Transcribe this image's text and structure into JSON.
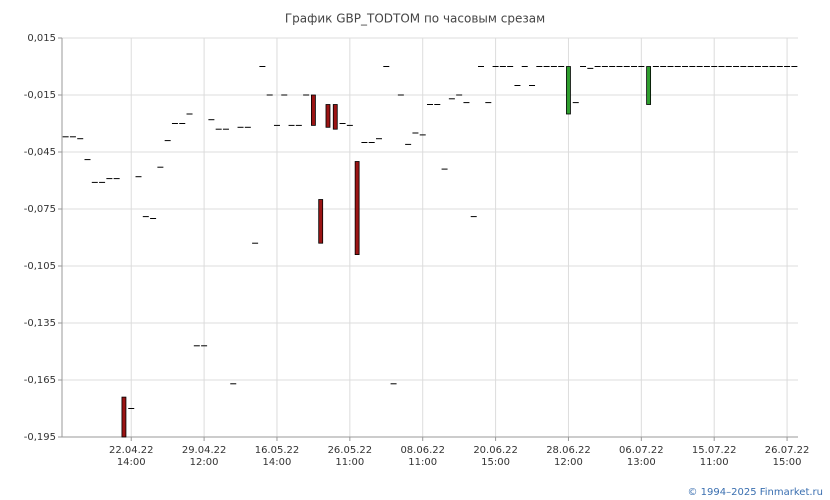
{
  "chart_data": {
    "type": "candlestick",
    "title": "График GBP_TODTOM по часовым срезам",
    "ylim": [
      -0.195,
      0.015
    ],
    "yticks": [
      {
        "value": 0.015,
        "label": "0,015"
      },
      {
        "value": -0.015,
        "label": "-0,015"
      },
      {
        "value": -0.045,
        "label": "-0,045"
      },
      {
        "value": -0.075,
        "label": "-0,075"
      },
      {
        "value": -0.105,
        "label": "-0,105"
      },
      {
        "value": -0.135,
        "label": "-0,135"
      },
      {
        "value": -0.165,
        "label": "-0,165"
      },
      {
        "value": -0.195,
        "label": "-0,195"
      }
    ],
    "grid": true,
    "up_color": "#2e9e2e",
    "down_color": "#9b1414",
    "categories": [
      null,
      null,
      null,
      null,
      null,
      null,
      null,
      null,
      null,
      [
        "22.04.22",
        "14:00"
      ],
      null,
      null,
      null,
      null,
      null,
      null,
      null,
      null,
      null,
      [
        "29.04.22",
        "12:00"
      ],
      null,
      null,
      null,
      null,
      null,
      null,
      null,
      null,
      null,
      [
        "16.05.22",
        "14:00"
      ],
      null,
      null,
      null,
      null,
      null,
      null,
      null,
      null,
      null,
      [
        "26.05.22",
        "11:00"
      ],
      null,
      null,
      null,
      null,
      null,
      null,
      null,
      null,
      null,
      [
        "08.06.22",
        "11:00"
      ],
      null,
      null,
      null,
      null,
      null,
      null,
      null,
      null,
      null,
      [
        "20.06.22",
        "15:00"
      ],
      null,
      null,
      null,
      null,
      null,
      null,
      null,
      null,
      null,
      [
        "28.06.22",
        "12:00"
      ],
      null,
      null,
      null,
      null,
      null,
      null,
      null,
      null,
      null,
      [
        "06.07.22",
        "13:00"
      ],
      null,
      null,
      null,
      null,
      null,
      null,
      null,
      null,
      null,
      [
        "15.07.22",
        "11:00"
      ],
      null,
      null,
      null,
      null,
      null,
      null,
      null,
      null,
      null,
      [
        "26.07.22",
        "15:00"
      ],
      null
    ],
    "open": [
      -0.037,
      -0.037,
      -0.038,
      -0.049,
      -0.061,
      -0.061,
      -0.059,
      -0.059,
      -0.174,
      -0.18,
      -0.058,
      -0.079,
      -0.08,
      -0.053,
      -0.039,
      -0.03,
      -0.03,
      -0.025,
      -0.147,
      -0.147,
      -0.028,
      -0.033,
      -0.033,
      -0.167,
      -0.032,
      -0.032,
      -0.093,
      0,
      -0.015,
      -0.031,
      -0.015,
      -0.031,
      -0.031,
      -0.015,
      -0.015,
      -0.07,
      -0.02,
      -0.02,
      -0.03,
      -0.031,
      -0.05,
      -0.04,
      -0.04,
      -0.038,
      0,
      -0.167,
      -0.015,
      -0.041,
      -0.035,
      -0.036,
      -0.02,
      -0.02,
      -0.054,
      -0.017,
      -0.015,
      -0.019,
      -0.079,
      0,
      -0.019,
      0,
      0,
      0,
      -0.01,
      0,
      -0.01,
      0,
      0,
      0,
      0,
      -0.025,
      -0.019,
      0,
      -0.001,
      0,
      0,
      0,
      0,
      0,
      0,
      0,
      -0.02,
      0,
      0,
      0,
      0,
      0,
      0,
      0,
      0,
      0,
      0,
      0,
      0,
      0,
      0,
      0,
      0,
      0,
      0,
      0,
      0
    ],
    "close": [
      -0.037,
      -0.037,
      -0.038,
      -0.049,
      -0.061,
      -0.061,
      -0.059,
      -0.059,
      -0.195,
      -0.18,
      -0.058,
      -0.079,
      -0.08,
      -0.053,
      -0.039,
      -0.03,
      -0.03,
      -0.025,
      -0.147,
      -0.147,
      -0.028,
      -0.033,
      -0.033,
      -0.167,
      -0.032,
      -0.032,
      -0.093,
      0,
      -0.015,
      -0.031,
      -0.015,
      -0.031,
      -0.031,
      -0.015,
      -0.031,
      -0.093,
      -0.032,
      -0.033,
      -0.03,
      -0.031,
      -0.099,
      -0.04,
      -0.04,
      -0.038,
      0,
      -0.167,
      -0.015,
      -0.041,
      -0.035,
      -0.036,
      -0.02,
      -0.02,
      -0.054,
      -0.017,
      -0.015,
      -0.019,
      -0.079,
      0,
      -0.019,
      0,
      0,
      0,
      -0.01,
      0,
      -0.01,
      0,
      0,
      0,
      0,
      0,
      -0.019,
      0,
      -0.001,
      0,
      0,
      0,
      0,
      0,
      0,
      0,
      0,
      0,
      0,
      0,
      0,
      0,
      0,
      0,
      0,
      0,
      0,
      0,
      0,
      0,
      0,
      0,
      0,
      0,
      0,
      0,
      0
    ]
  },
  "footer": "© 1994–2025 Finmarket.ru"
}
